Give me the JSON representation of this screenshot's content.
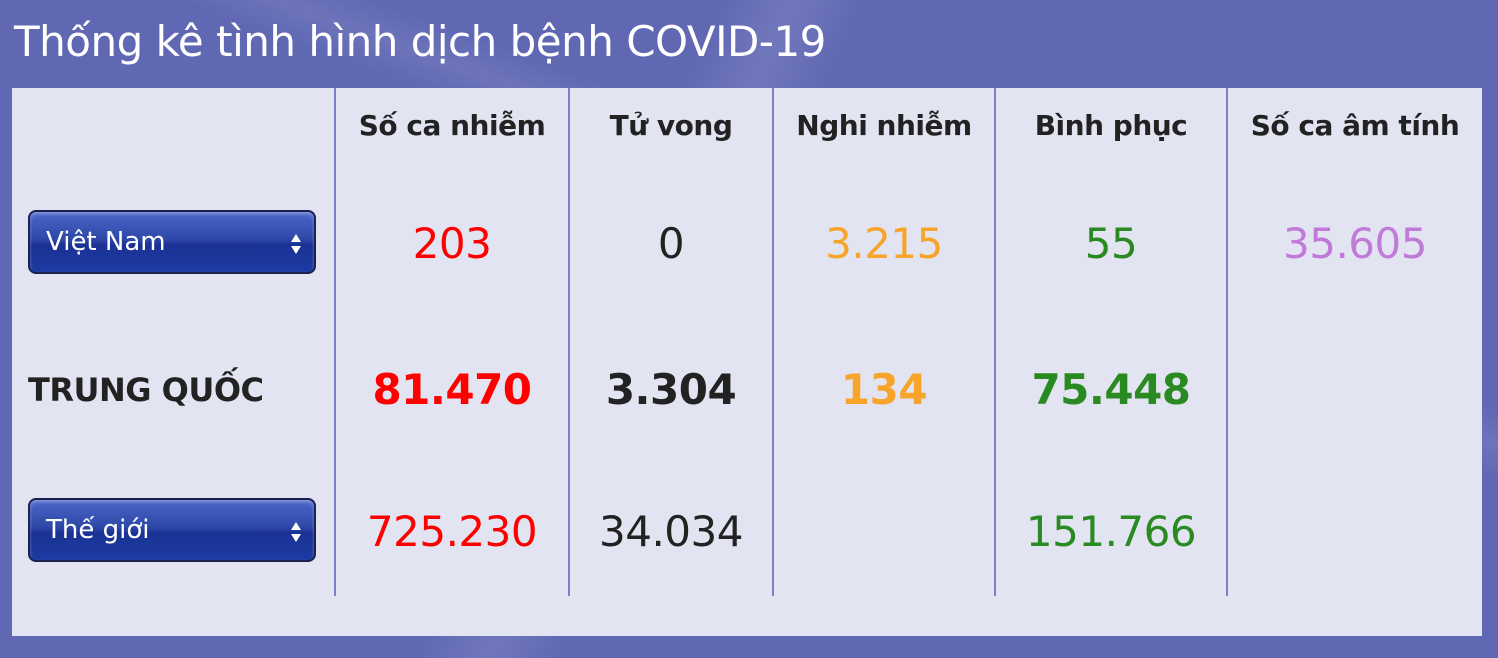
{
  "title": "Thống kê tình hình dịch bệnh COVID-19",
  "columns": [
    "Số ca nhiễm",
    "Tử vong",
    "Nghi nhiễm",
    "Bình phục",
    "Số ca âm tính"
  ],
  "colors": {
    "infected": "#ff0000",
    "deaths": "#222222",
    "suspected": "#f7a42b",
    "recovered": "#2a8a22",
    "negative": "#c07ad8"
  },
  "rows": {
    "vietnam": {
      "selector_value": "Việt Nam",
      "infected": "203",
      "deaths": "0",
      "suspected": "3.215",
      "recovered": "55",
      "negative": "35.605"
    },
    "china": {
      "label": "TRUNG QUỐC",
      "infected": "81.470",
      "deaths": "3.304",
      "suspected": "134",
      "recovered": "75.448"
    },
    "world": {
      "selector_value": "Thế giới",
      "infected": "725.230",
      "deaths": "34.034",
      "recovered": "151.766"
    }
  },
  "icons": {
    "selector_arrows": "up-down-arrows-icon"
  }
}
